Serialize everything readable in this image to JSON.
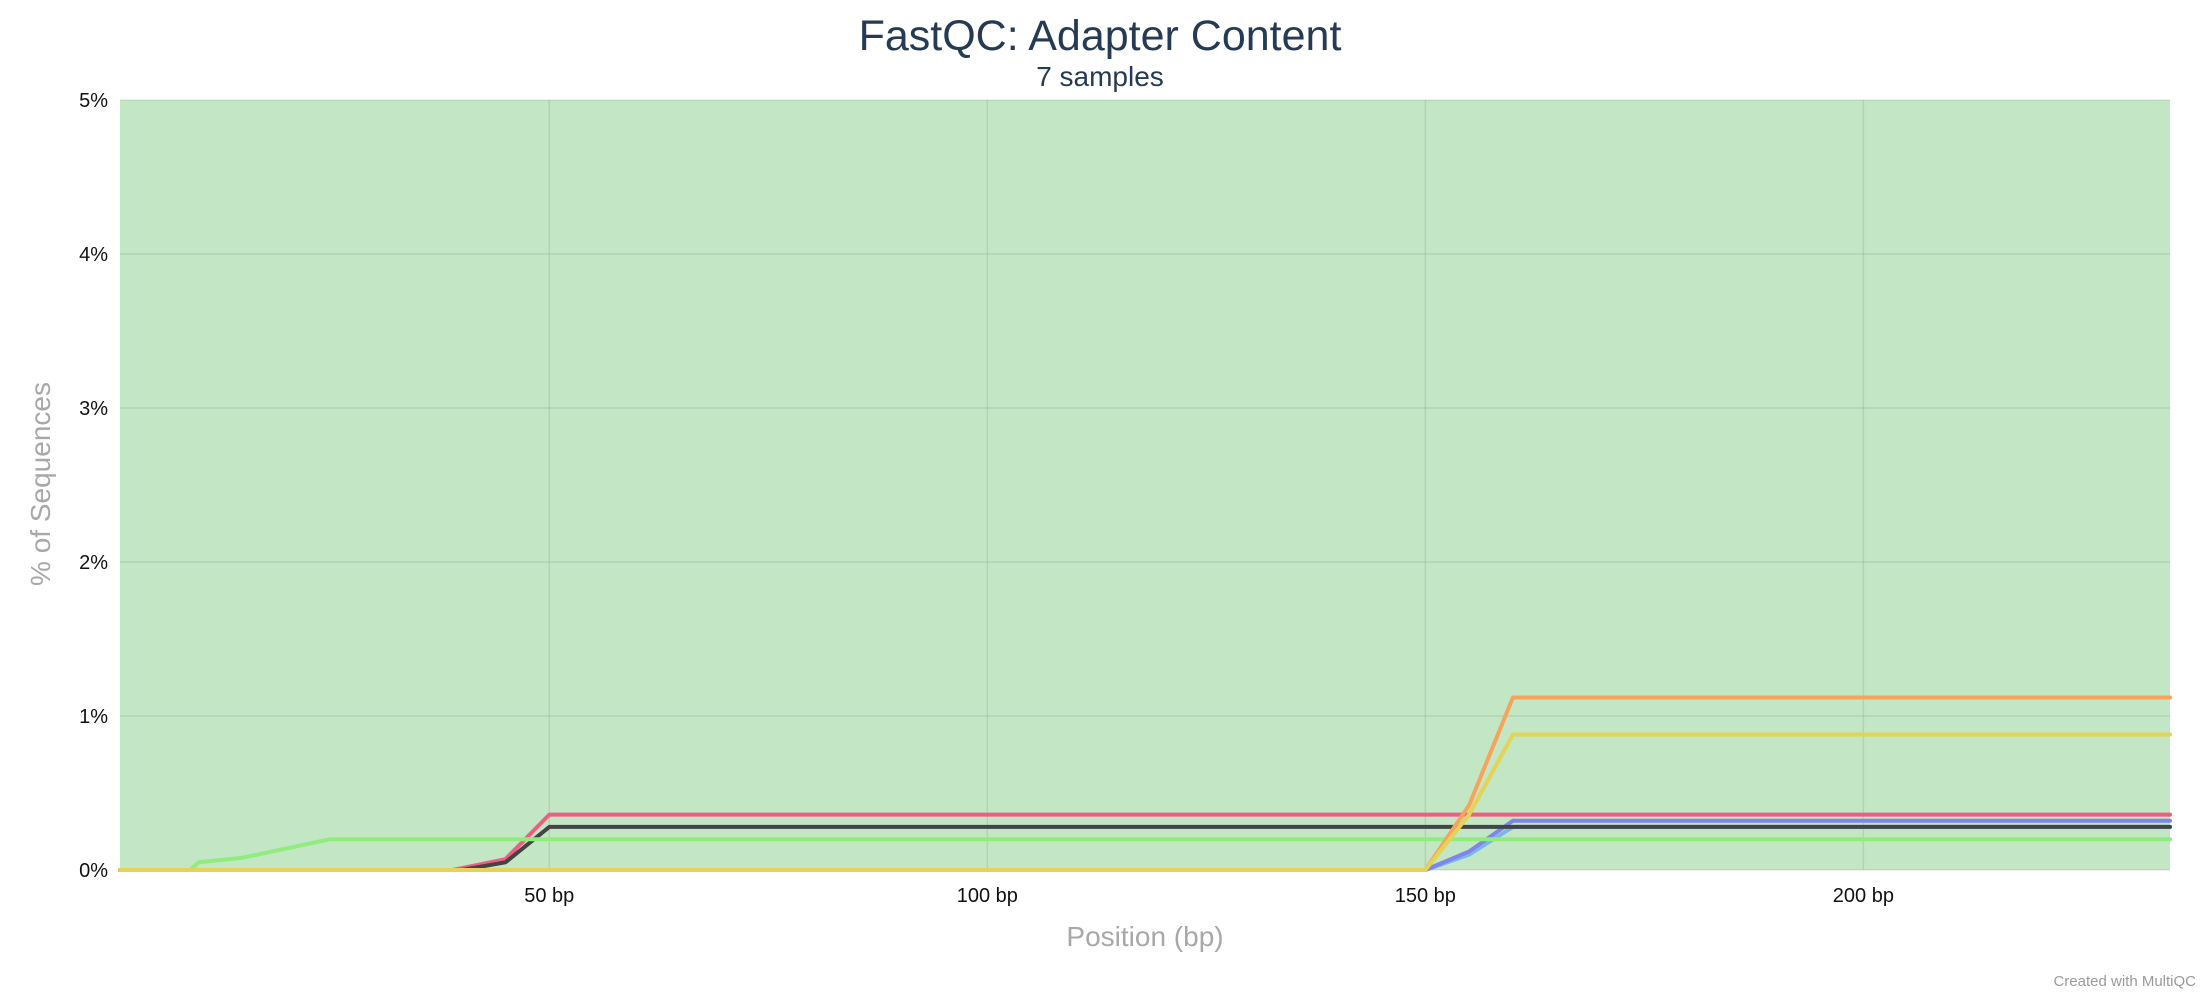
{
  "chart_data": {
    "type": "line",
    "title": "FastQC: Adapter Content",
    "subtitle": "7 samples",
    "xlabel": "Position (bp)",
    "ylabel": "% of Sequences",
    "xlim": [
      1,
      235
    ],
    "ylim": [
      0,
      5
    ],
    "x_ticks": [
      50,
      100,
      150,
      200
    ],
    "x_tick_labels": [
      "50 bp",
      "100 bp",
      "150 bp",
      "200 bp"
    ],
    "y_ticks": [
      0,
      1,
      2,
      3,
      4,
      5
    ],
    "y_tick_labels": [
      "0%",
      "1%",
      "2%",
      "3%",
      "4%",
      "5%"
    ],
    "grid": true,
    "background_band": {
      "from": 0,
      "to": 5,
      "color": "#c3e6c4"
    },
    "series": [
      {
        "color": "#7cb5ec",
        "points": [
          [
            1,
            0
          ],
          [
            150,
            0
          ],
          [
            155,
            0.1
          ],
          [
            160,
            0.28
          ],
          [
            235,
            0.28
          ]
        ]
      },
      {
        "color": "#8085e9",
        "points": [
          [
            1,
            0
          ],
          [
            150,
            0
          ],
          [
            155,
            0.12
          ],
          [
            160,
            0.32
          ],
          [
            235,
            0.32
          ]
        ]
      },
      {
        "color": "#f15c80",
        "points": [
          [
            1,
            0
          ],
          [
            39,
            0
          ],
          [
            45,
            0.07
          ],
          [
            50,
            0.36
          ],
          [
            235,
            0.36
          ]
        ]
      },
      {
        "color": "#434348",
        "points": [
          [
            1,
            0
          ],
          [
            40,
            0
          ],
          [
            45,
            0.05
          ],
          [
            50,
            0.28
          ],
          [
            235,
            0.28
          ]
        ]
      },
      {
        "color": "#90ed7d",
        "points": [
          [
            1,
            0
          ],
          [
            9,
            0
          ],
          [
            10,
            0.05
          ],
          [
            15,
            0.08
          ],
          [
            20,
            0.14
          ],
          [
            25,
            0.2
          ],
          [
            235,
            0.2
          ]
        ]
      },
      {
        "color": "#f7a35c",
        "points": [
          [
            1,
            0
          ],
          [
            150,
            0
          ],
          [
            155,
            0.42
          ],
          [
            160,
            1.12
          ],
          [
            235,
            1.12
          ]
        ]
      },
      {
        "color": "#e4d354",
        "points": [
          [
            1,
            0
          ],
          [
            150,
            0
          ],
          [
            155,
            0.36
          ],
          [
            160,
            0.88
          ],
          [
            235,
            0.88
          ]
        ]
      }
    ],
    "credit": "Created with MultiQC"
  }
}
